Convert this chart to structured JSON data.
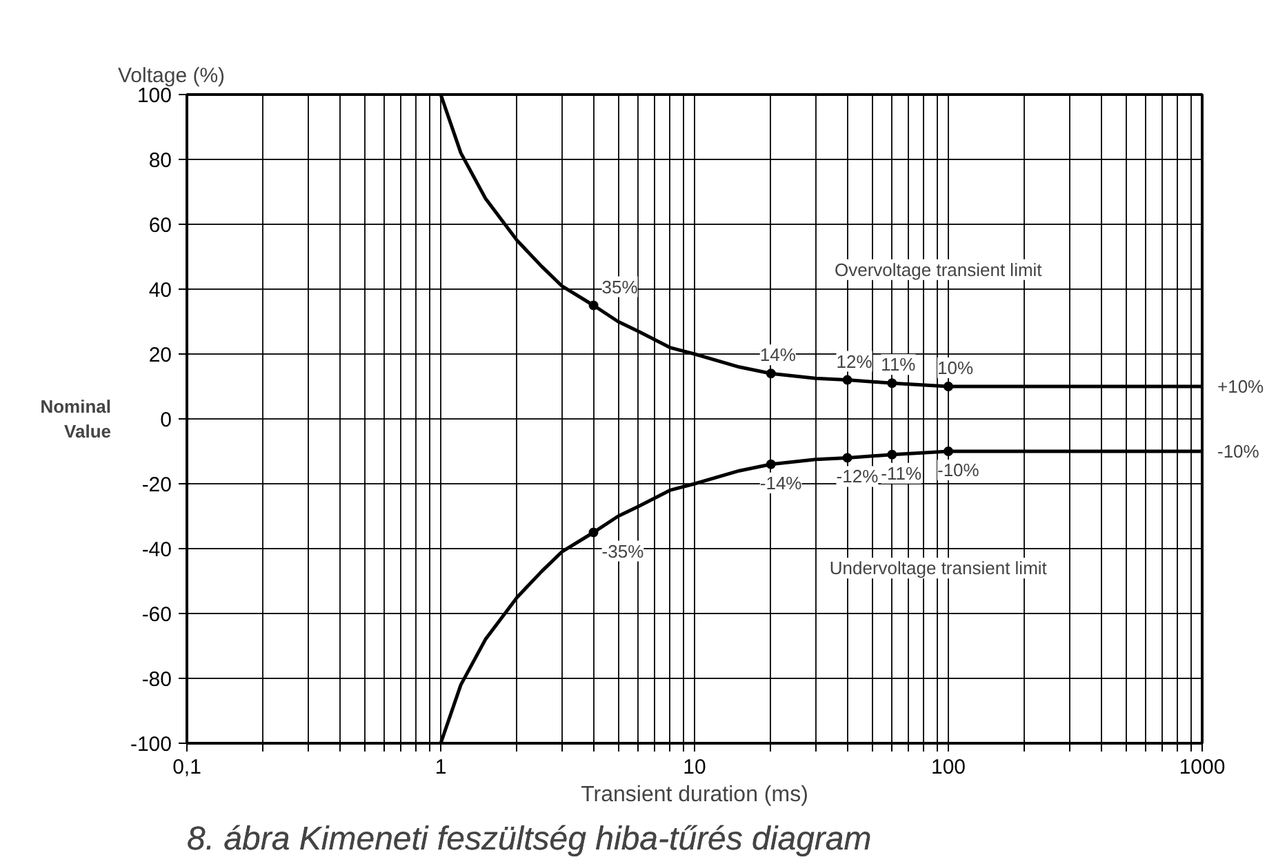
{
  "chart_data": {
    "type": "line",
    "title": "8. ábra Kimeneti feszültség hiba-tűrés diagram",
    "xlabel": "Transient duration (ms)",
    "ylabel": "Voltage (%)",
    "log": "x",
    "xlim": [
      0.1,
      1000
    ],
    "ylim": [
      -100,
      100
    ],
    "xticks": [
      {
        "value": 0.1,
        "label": "0,1"
      },
      {
        "value": 0.2,
        "label": null
      },
      {
        "value": 0.3,
        "label": null
      },
      {
        "value": 0.4,
        "label": null
      },
      {
        "value": 0.5,
        "label": null
      },
      {
        "value": 0.6,
        "label": null
      },
      {
        "value": 0.7,
        "label": null
      },
      {
        "value": 0.8,
        "label": null
      },
      {
        "value": 0.9,
        "label": null
      },
      1,
      {
        "value": 2,
        "label": null
      },
      {
        "value": 3,
        "label": null
      },
      {
        "value": 4,
        "label": null
      },
      {
        "value": 5,
        "label": null
      },
      {
        "value": 6,
        "label": null
      },
      {
        "value": 7,
        "label": null
      },
      {
        "value": 8,
        "label": null
      },
      {
        "value": 9,
        "label": null
      },
      10,
      {
        "value": 20,
        "label": null
      },
      {
        "value": 30,
        "label": null
      },
      {
        "value": 40,
        "label": null
      },
      {
        "value": 50,
        "label": null
      },
      {
        "value": 60,
        "label": null
      },
      {
        "value": 70,
        "label": null
      },
      {
        "value": 80,
        "label": null
      },
      {
        "value": 90,
        "label": null
      },
      100,
      {
        "value": 200,
        "label": null
      },
      {
        "value": 300,
        "label": null
      },
      {
        "value": 400,
        "label": null
      },
      {
        "value": 500,
        "label": null
      },
      {
        "value": 600,
        "label": null
      },
      {
        "value": 700,
        "label": null
      },
      {
        "value": 800,
        "label": null
      },
      {
        "value": 900,
        "label": null
      },
      1000
    ],
    "yticks": [
      -100,
      -80,
      -60,
      -40,
      -20,
      0,
      20,
      40,
      60,
      80,
      100
    ],
    "grid": true,
    "line_style": "solid",
    "series": [
      {
        "color": "#000000",
        "x": [
          1,
          1.2,
          1.5,
          2,
          2.5,
          3,
          4,
          5,
          6,
          8,
          10,
          15,
          20,
          30,
          40,
          60,
          100,
          1000
        ],
        "values": [
          100,
          82,
          68,
          55,
          47,
          41,
          35,
          30,
          27,
          22,
          20,
          16,
          14,
          12.5,
          12,
          11,
          10,
          10
        ]
      },
      {
        "color": "#000000",
        "x": [
          1,
          1.2,
          1.5,
          2,
          2.5,
          3,
          4,
          5,
          6,
          8,
          10,
          15,
          20,
          30,
          40,
          60,
          100,
          1000
        ],
        "values": [
          -100,
          -82,
          -68,
          -55,
          -47,
          -41,
          -35,
          -30,
          -27,
          -22,
          -20,
          -16,
          -14,
          -12.5,
          -12,
          -11,
          -10,
          -10
        ]
      },
      {
        "type": "scatter",
        "marker": "circle",
        "color": "#000000",
        "x": [
          4,
          20,
          40,
          60,
          100,
          4,
          20,
          40,
          60,
          100
        ],
        "values": [
          35,
          14,
          12,
          11,
          10,
          -35,
          -14,
          -12,
          -11,
          -10
        ]
      }
    ],
    "annotations": [
      {
        "text": "35%",
        "x": 4,
        "y": 35
      },
      {
        "text": "14%",
        "x": 20,
        "y": 14
      },
      {
        "text": "12%",
        "x": 40,
        "y": 12
      },
      {
        "text": "11%",
        "x": 60,
        "y": 11
      },
      {
        "text": "10%",
        "x": 100,
        "y": 10
      },
      {
        "text": "-35%",
        "x": 4,
        "y": -35
      },
      {
        "text": "-14%",
        "x": 20,
        "y": -14
      },
      {
        "text": "-12%",
        "x": 40,
        "y": -12
      },
      {
        "text": "-11%",
        "x": 60,
        "y": -11
      },
      {
        "text": "-10%",
        "x": 100,
        "y": -10
      },
      {
        "text": "+10%",
        "x": 1000,
        "y": 10
      },
      {
        "text": "-10%",
        "x": 1000,
        "y": -10
      },
      "Overvoltage transient limit",
      "Undervoltage transient limit",
      "Nominal Value"
    ]
  }
}
